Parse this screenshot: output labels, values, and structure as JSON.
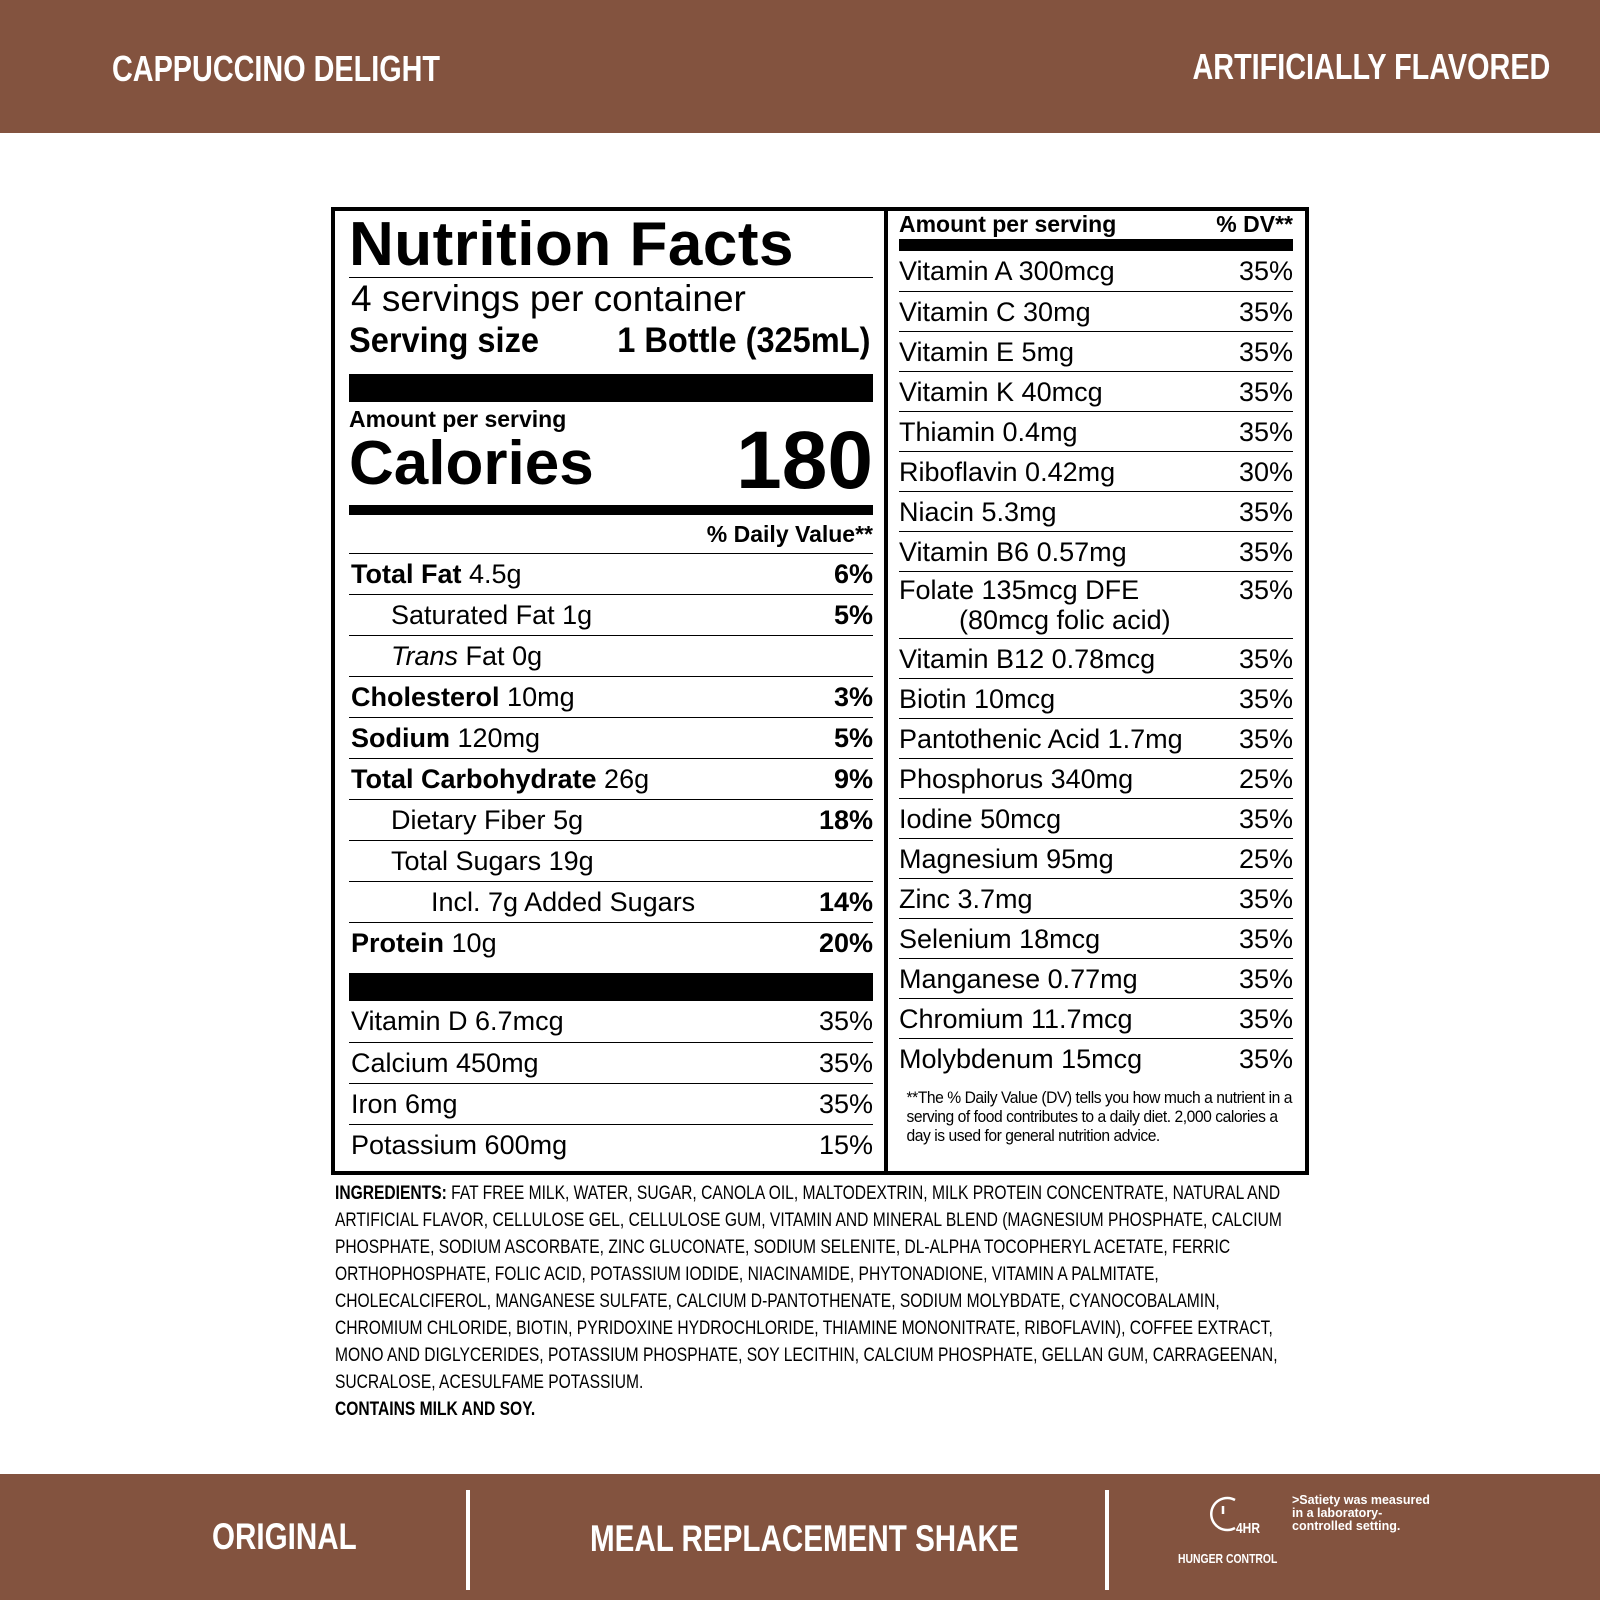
{
  "header": {
    "title": "CAPPUCCINO DELIGHT",
    "flavor": "ARTIFICIALLY FLAVORED"
  },
  "label": {
    "title": "Nutrition Facts",
    "servings": "4 servings per container",
    "serving_size_label": "Serving size",
    "serving_size_value": "1 Bottle (325mL)",
    "amount_per_serving": "Amount per serving",
    "calories_label": "Calories",
    "calories_value": "180",
    "dv_header": "% Daily Value**",
    "nutrients": [
      {
        "name": "Total Fat",
        "amount": "4.5g",
        "dv": "6%",
        "sub": [
          {
            "name": "Saturated Fat",
            "amount": "1g",
            "dv": "5%"
          },
          {
            "name_italic": "Trans",
            "name": "Fat",
            "amount": "0g"
          }
        ]
      },
      {
        "name": "Cholesterol",
        "amount": "10mg",
        "dv": "3%"
      },
      {
        "name": "Sodium",
        "amount": "120mg",
        "dv": "5%"
      },
      {
        "name": "Total Carbohydrate",
        "amount": "26g",
        "dv": "9%",
        "sub": [
          {
            "name": "Dietary Fiber",
            "amount": "5g",
            "dv": "18%"
          },
          {
            "name": "Total Sugars",
            "amount": "19g",
            "sub": [
              {
                "name": "Incl. 7g Added Sugars",
                "dv": "14%"
              }
            ]
          }
        ]
      },
      {
        "name": "Protein",
        "amount": "10g",
        "dv": "20%"
      }
    ],
    "vitamins": [
      {
        "name": "Vitamin D 6.7mcg",
        "dv": "35%"
      },
      {
        "name": "Calcium 450mg",
        "dv": "35%"
      },
      {
        "name": "Iron 6mg",
        "dv": "35%"
      },
      {
        "name": "Potassium 600mg",
        "dv": "15%"
      }
    ],
    "right_header": "Amount per serving",
    "right_dv_header": "% DV**",
    "micronutrients": [
      {
        "name": "Vitamin A 300mcg",
        "dv": "35%"
      },
      {
        "name": "Vitamin C 30mg",
        "dv": "35%"
      },
      {
        "name": "Vitamin E 5mg",
        "dv": "35%"
      },
      {
        "name": "Vitamin K 40mcg",
        "dv": "35%"
      },
      {
        "name": "Thiamin 0.4mg",
        "dv": "35%"
      },
      {
        "name": "Riboflavin 0.42mg",
        "dv": "30%"
      },
      {
        "name": "Niacin 5.3mg",
        "dv": "35%"
      },
      {
        "name": "Vitamin B6 0.57mg",
        "dv": "35%"
      },
      {
        "name": "Folate 135mcg DFE",
        "note": "(80mcg folic acid)",
        "dv": "35%"
      },
      {
        "name": "Vitamin B12 0.78mcg",
        "dv": "35%"
      },
      {
        "name": "Biotin 10mcg",
        "dv": "35%"
      },
      {
        "name": "Pantothenic Acid 1.7mg",
        "dv": "35%"
      },
      {
        "name": "Phosphorus 340mg",
        "dv": "25%"
      },
      {
        "name": "Iodine 50mcg",
        "dv": "35%"
      },
      {
        "name": "Magnesium 95mg",
        "dv": "25%"
      },
      {
        "name": "Zinc 3.7mg",
        "dv": "35%"
      },
      {
        "name": "Selenium 18mcg",
        "dv": "35%"
      },
      {
        "name": "Manganese 0.77mg",
        "dv": "35%"
      },
      {
        "name": "Chromium 11.7mcg",
        "dv": "35%"
      },
      {
        "name": "Molybdenum 15mcg",
        "dv": "35%"
      }
    ],
    "footnote": "**The % Daily Value (DV) tells you how much a nutrient in a serving of food contributes to a daily diet. 2,000 calories a day is used for general nutrition advice."
  },
  "ingredients": {
    "label": "INGREDIENTS:",
    "text": "FAT FREE MILK, WATER, SUGAR, CANOLA OIL, MALTODEXTRIN, MILK PROTEIN CONCENTRATE, NATURAL AND ARTIFICIAL FLAVOR, CELLULOSE GEL, CELLULOSE GUM, VITAMIN AND MINERAL BLEND (MAGNESIUM PHOSPHATE, CALCIUM PHOSPHATE, SODIUM ASCORBATE, ZINC GLUCONATE, SODIUM SELENITE, DL-ALPHA TOCOPHERYL ACETATE, FERRIC ORTHOPHOSPHATE, FOLIC ACID, POTASSIUM IODIDE, NIACINAMIDE, PHYTONADIONE, VITAMIN A PALMITATE, CHOLECALCIFEROL, MANGANESE SULFATE, CALCIUM D-PANTOTHENATE, SODIUM MOLYBDATE, CYANOCOBALAMIN, CHROMIUM CHLORIDE, BIOTIN, PYRIDOXINE HYDROCHLORIDE, THIAMINE MONONITRATE, RIBOFLAVIN), COFFEE EXTRACT, MONO AND DIGLYCERIDES, POTASSIUM PHOSPHATE, SOY LECITHIN, CALCIUM PHOSPHATE, GELLAN GUM, CARRAGEENAN, SUCRALOSE, ACESULFAME POTASSIUM.",
    "contains": "CONTAINS MILK AND SOY."
  },
  "footer": {
    "left": "ORIGINAL",
    "center": "MEAL REPLACEMENT SHAKE",
    "icon_label": "4HR",
    "icon_caption": "HUNGER CONTROL",
    "note": ">Satiety was measured in a laboratory-controlled setting."
  }
}
